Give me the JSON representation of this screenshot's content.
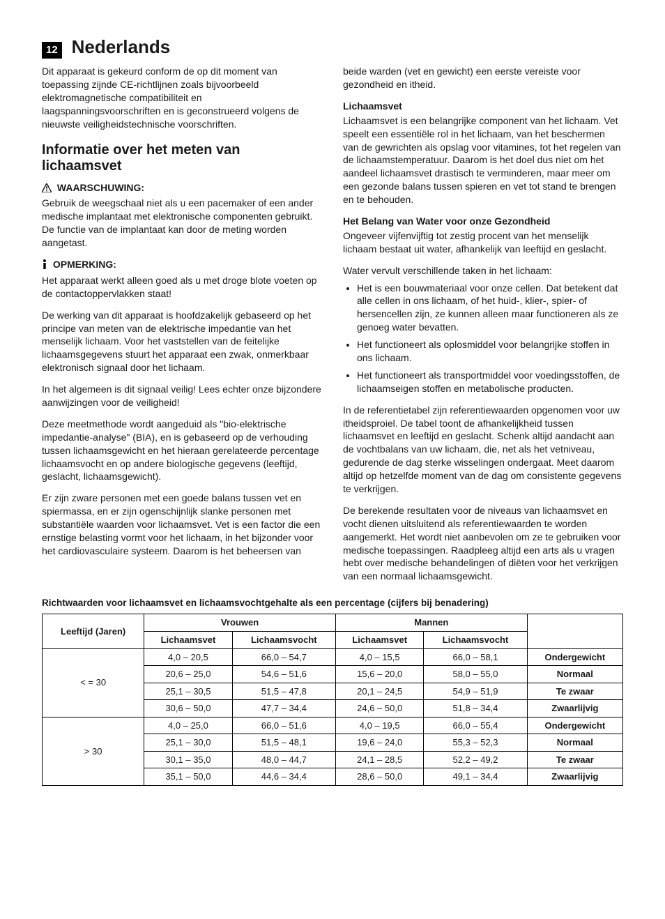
{
  "page": {
    "number": "12",
    "title": "Nederlands"
  },
  "intro": "Dit apparaat is gekeurd conform de op dit moment van toepassing zijnde CE-richtlijnen zoals bijvoorbeeld elektromagnetische compatibiliteit en laagspanningsvoorschriften en is geconstrueerd volgens de nieuwste veiligheidstechnische voorschriften.",
  "section_heading": "Informatie over het meten van lichaamsvet",
  "warning": {
    "title": "WAARSCHUWING:",
    "body": "Gebruik de weegschaal niet als u een pacemaker of een ander medische implantaat met elektronische componenten gebruikt. De functie van de implantaat kan door de meting worden aangetast."
  },
  "note": {
    "title": "OPMERKING:",
    "body": "Het apparaat werkt alleen goed als u met droge blote voeten op de contactoppervlakken staat!"
  },
  "para1": "De werking van dit apparaat is hoofdzakelijk gebaseerd op het principe van meten van de elektrische impedantie van het menselijk lichaam. Voor het vaststellen van de feitelijke lichaamsgegevens stuurt het apparaat een zwak, onmerkbaar elektronisch signaal door het lichaam.",
  "para2": "In het algemeen is dit signaal veilig! Lees echter onze bijzondere aanwijzingen voor de veiligheid!",
  "para3": "Deze meetmethode wordt aangeduid als \"bio-elektrische impedantie-analyse\" (BIA), en is gebaseerd op de verhouding tussen lichaamsgewicht en het hieraan gerelateerde percentage lichaamsvocht en op andere biologische gegevens (leeftijd, geslacht, lichaamsgewicht).",
  "para4": "Er zijn zware personen met een goede balans tussen vet en spiermassa, en er zijn ogenschijnlijk slanke personen met substantiële waarden voor lichaamsvet. Vet is een factor die een ernstige belasting vormt voor het lichaam, in het bijzonder voor het cardiovasculaire systeem. Daarom is het beheersen van beide warden (vet en gewicht) een eerste vereiste voor gezondheid en itheid.",
  "lichaamsvet": {
    "title": "Lichaamsvet",
    "body": "Lichaamsvet is een belangrijke component van het lichaam. Vet speelt een essentiële rol in het lichaam, van het beschermen van de gewrichten als opslag voor vitamines, tot het regelen van de lichaamstemperatuur. Daarom is het doel dus niet om het aandeel lichaamsvet drastisch te verminderen, maar meer om een gezonde balans tussen spieren en vet tot stand te brengen en te behouden."
  },
  "water": {
    "title": "Het Belang van Water voor onze Gezondheid",
    "intro": "Ongeveer vijfenvijftig tot zestig procent van het menselijk lichaam bestaat uit water, afhankelijk van leeftijd en geslacht.",
    "lead": "Water vervult verschillende taken in het lichaam:",
    "items": [
      "Het is een bouwmateriaal voor onze cellen. Dat betekent dat alle cellen in ons lichaam, of het huid-, klier-, spier- of hersencellen zijn, ze kunnen alleen maar functioneren als ze genoeg water bevatten.",
      "Het functioneert als oplosmiddel voor belangrijke stoffen in ons lichaam.",
      "Het functioneert als transportmiddel voor voedingsstoffen, de lichaamseigen stoffen en metabolische producten."
    ],
    "para1": "In de referentietabel zijn referentiewaarden opgenomen voor uw itheidsproiel. De tabel toont de afhankelijkheid tussen lichaamsvet en leeftijd en geslacht. Schenk altijd aandacht aan de vochtbalans van uw lichaam, die, net als het vetniveau, gedurende de dag sterke wisselingen ondergaat. Meet daarom altijd op hetzelfde moment van de dag om consistente gegevens te verkrijgen.",
    "para2": "De berekende resultaten voor de niveaus van lichaamsvet en vocht dienen uitsluitend als referentiewaarden te worden aangemerkt. Het wordt niet aanbevolen om ze te gebruiken voor medische toepassingen. Raadpleeg altijd een arts als u vragen hebt over medische behandelingen of diëten voor het verkrijgen van een normaal lichaamsgewicht."
  },
  "table": {
    "title": "Richtwaarden voor lichaamsvet en lichaamsvochtgehalte als een percentage (cijfers bij benadering)",
    "headers": {
      "age": "Leeftijd (Jaren)",
      "women": "Vrouwen",
      "men": "Mannen",
      "fat": "Lichaamsvet",
      "moist": "Lichaamsvocht"
    },
    "groups": [
      {
        "age": "< = 30",
        "rows": [
          {
            "wf": "4,0 – 20,5",
            "wm": "66,0 – 54,7",
            "mf": "4,0 – 15,5",
            "mm": "66,0 – 58,1",
            "status": "Ondergewicht"
          },
          {
            "wf": "20,6 – 25,0",
            "wm": "54,6 – 51,6",
            "mf": "15,6 – 20,0",
            "mm": "58,0 – 55,0",
            "status": "Normaal"
          },
          {
            "wf": "25,1 – 30,5",
            "wm": "51,5 – 47,8",
            "mf": "20,1 – 24,5",
            "mm": "54,9 – 51,9",
            "status": "Te zwaar"
          },
          {
            "wf": "30,6 – 50,0",
            "wm": "47,7 – 34,4",
            "mf": "24,6 – 50,0",
            "mm": "51,8 – 34,4",
            "status": "Zwaarlijvig"
          }
        ]
      },
      {
        "age": "> 30",
        "rows": [
          {
            "wf": "4,0 – 25,0",
            "wm": "66,0 – 51,6",
            "mf": "4,0 – 19,5",
            "mm": "66,0 – 55,4",
            "status": "Ondergewicht"
          },
          {
            "wf": "25,1 – 30,0",
            "wm": "51,5 – 48,1",
            "mf": "19,6 – 24,0",
            "mm": "55,3 – 52,3",
            "status": "Normaal"
          },
          {
            "wf": "30,1 – 35,0",
            "wm": "48,0 – 44,7",
            "mf": "24,1 – 28,5",
            "mm": "52,2 – 49,2",
            "status": "Te zwaar"
          },
          {
            "wf": "35,1 – 50,0",
            "wm": "44,6 – 34,4",
            "mf": "28,6 – 50,0",
            "mm": "49,1 – 34,4",
            "status": "Zwaarlijvig"
          }
        ]
      }
    ]
  }
}
